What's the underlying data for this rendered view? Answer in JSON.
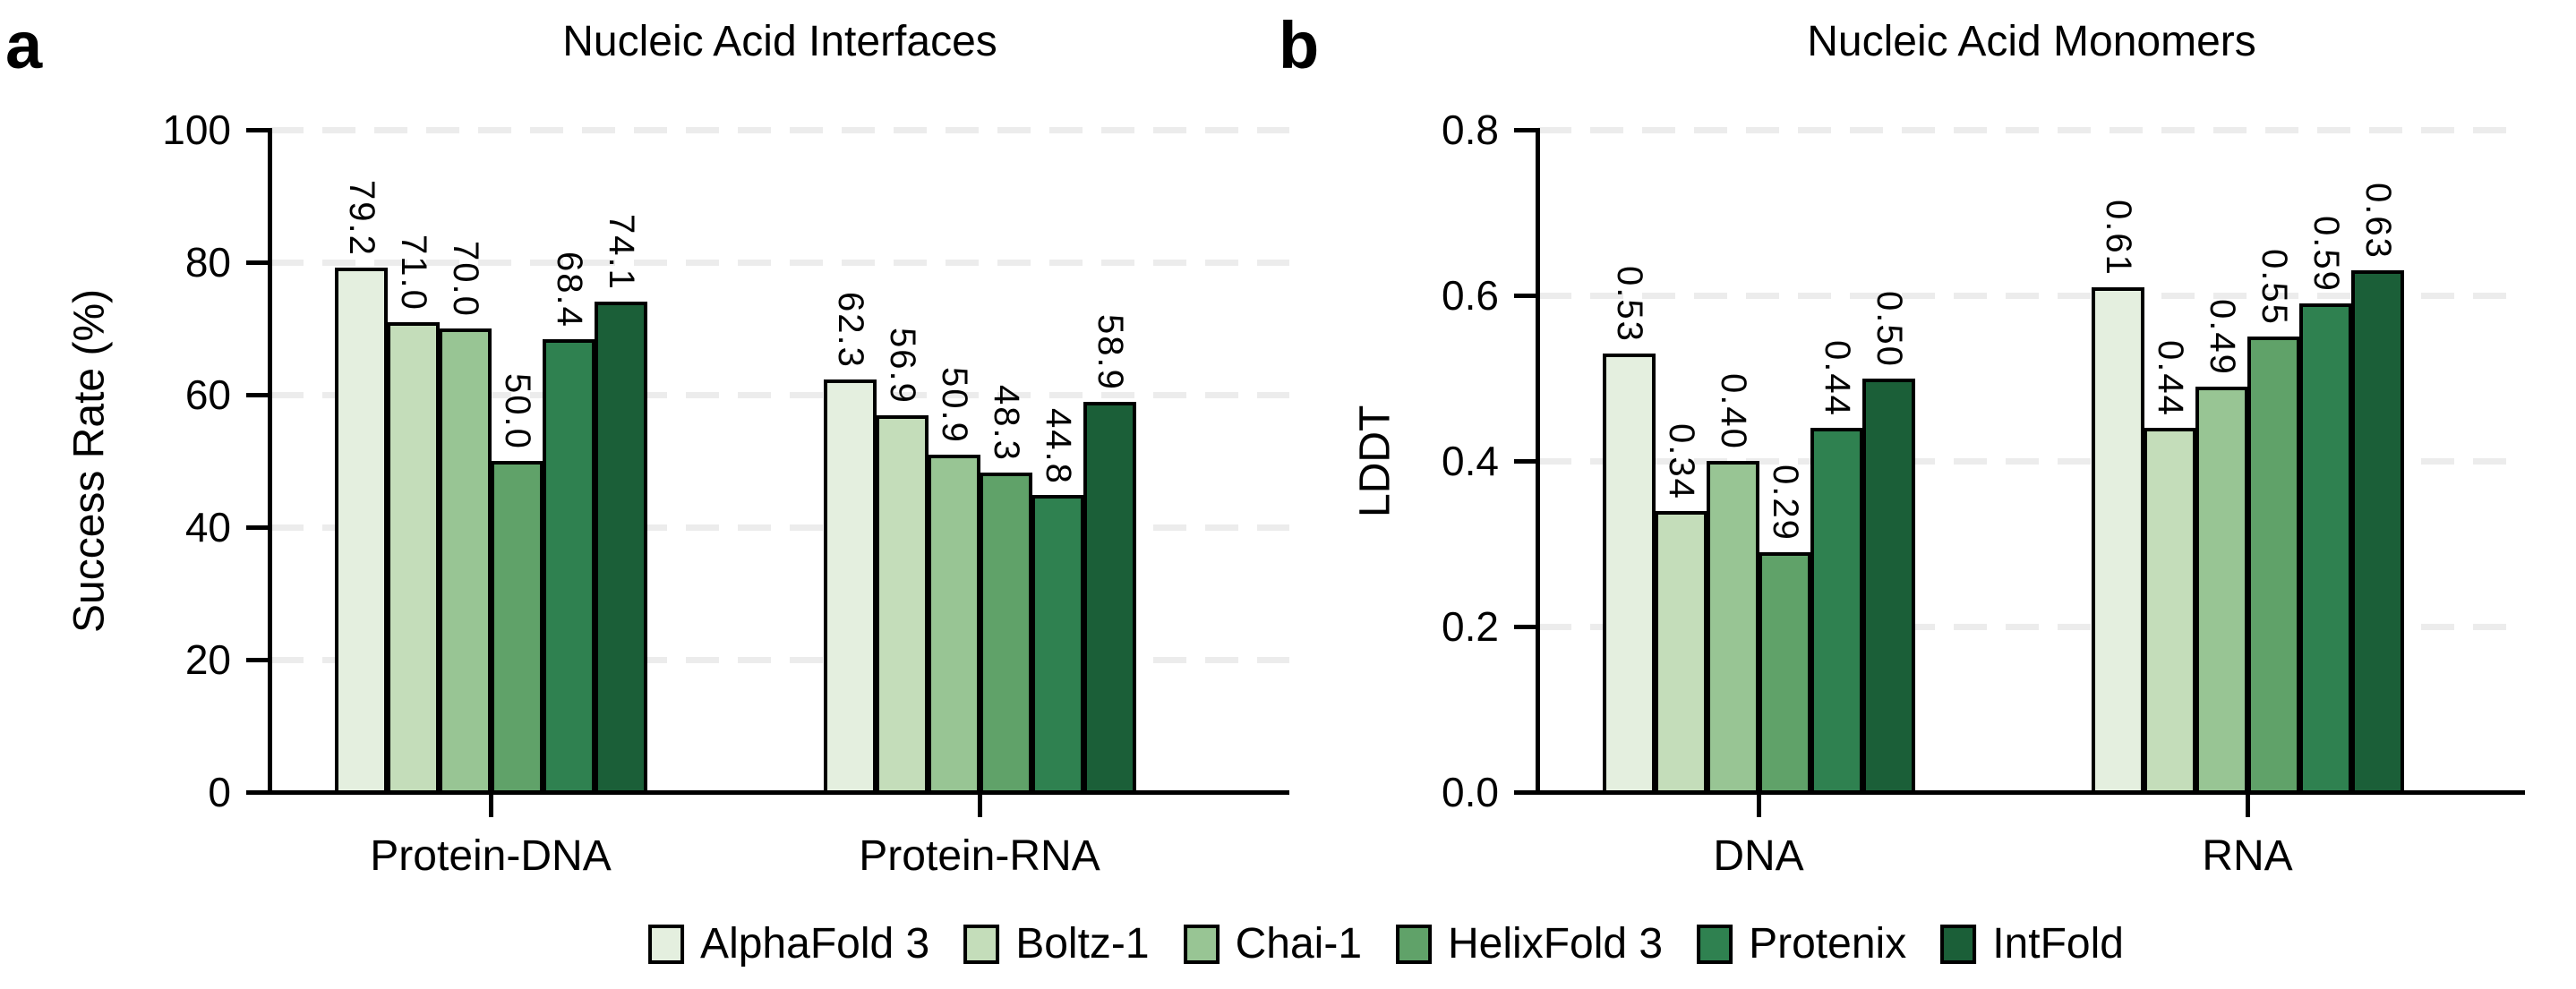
{
  "figure": {
    "background": "#ffffff"
  },
  "panel_letters": [
    "a",
    "b"
  ],
  "legend": {
    "position": "bottom",
    "items": [
      {
        "label": "AlphaFold 3",
        "color": "#e4efdf"
      },
      {
        "label": "Boltz-1",
        "color": "#c4ddba"
      },
      {
        "label": "Chai-1",
        "color": "#98c594"
      },
      {
        "label": "HelixFold 3",
        "color": "#60a269"
      },
      {
        "label": "Protenix",
        "color": "#2f8150"
      },
      {
        "label": "IntFold",
        "color": "#1b5f38"
      }
    ]
  },
  "chart_data": [
    {
      "type": "bar",
      "title": "Nucleic Acid Interfaces",
      "xlabel": "",
      "ylabel": "Success Rate (%)",
      "ylim": [
        0,
        100
      ],
      "yticks": [
        0,
        20,
        40,
        60,
        80,
        100
      ],
      "ytick_labels": [
        "0",
        "20",
        "40",
        "60",
        "80",
        "100"
      ],
      "grid": true,
      "categories": [
        "Protein-DNA",
        "Protein-RNA"
      ],
      "series": [
        {
          "name": "AlphaFold 3",
          "color": "#e4efdf",
          "values": [
            79.2,
            62.3
          ],
          "value_labels": [
            "79.2",
            "62.3"
          ]
        },
        {
          "name": "Boltz-1",
          "color": "#c4ddba",
          "values": [
            71.0,
            56.9
          ],
          "value_labels": [
            "71.0",
            "56.9"
          ]
        },
        {
          "name": "Chai-1",
          "color": "#98c594",
          "values": [
            70.0,
            50.9
          ],
          "value_labels": [
            "70.0",
            "50.9"
          ]
        },
        {
          "name": "HelixFold 3",
          "color": "#60a269",
          "values": [
            50.0,
            48.3
          ],
          "value_labels": [
            "50.0",
            "48.3"
          ]
        },
        {
          "name": "Protenix",
          "color": "#2f8150",
          "values": [
            68.4,
            44.8
          ],
          "value_labels": [
            "68.4",
            "44.8"
          ]
        },
        {
          "name": "IntFold",
          "color": "#1b5f38",
          "values": [
            74.1,
            58.9
          ],
          "value_labels": [
            "74.1",
            "58.9"
          ]
        }
      ]
    },
    {
      "type": "bar",
      "title": "Nucleic Acid Monomers",
      "xlabel": "",
      "ylabel": "LDDT",
      "ylim": [
        0,
        0.8
      ],
      "yticks": [
        0,
        0.2,
        0.4,
        0.6,
        0.8
      ],
      "ytick_labels": [
        "0.0",
        "0.2",
        "0.4",
        "0.6",
        "0.8"
      ],
      "grid": true,
      "categories": [
        "DNA",
        "RNA"
      ],
      "series": [
        {
          "name": "AlphaFold 3",
          "color": "#e4efdf",
          "values": [
            0.53,
            0.61
          ],
          "value_labels": [
            "0.53",
            "0.61"
          ]
        },
        {
          "name": "Boltz-1",
          "color": "#c4ddba",
          "values": [
            0.34,
            0.44
          ],
          "value_labels": [
            "0.34",
            "0.44"
          ]
        },
        {
          "name": "Chai-1",
          "color": "#98c594",
          "values": [
            0.4,
            0.49
          ],
          "value_labels": [
            "0.40",
            "0.49"
          ]
        },
        {
          "name": "HelixFold 3",
          "color": "#60a269",
          "values": [
            0.29,
            0.55
          ],
          "value_labels": [
            "0.29",
            "0.55"
          ]
        },
        {
          "name": "Protenix",
          "color": "#2f8150",
          "values": [
            0.44,
            0.59
          ],
          "value_labels": [
            "0.44",
            "0.59"
          ]
        },
        {
          "name": "IntFold",
          "color": "#1b5f38",
          "values": [
            0.5,
            0.63
          ],
          "value_labels": [
            "0.50",
            "0.63"
          ]
        }
      ]
    }
  ]
}
